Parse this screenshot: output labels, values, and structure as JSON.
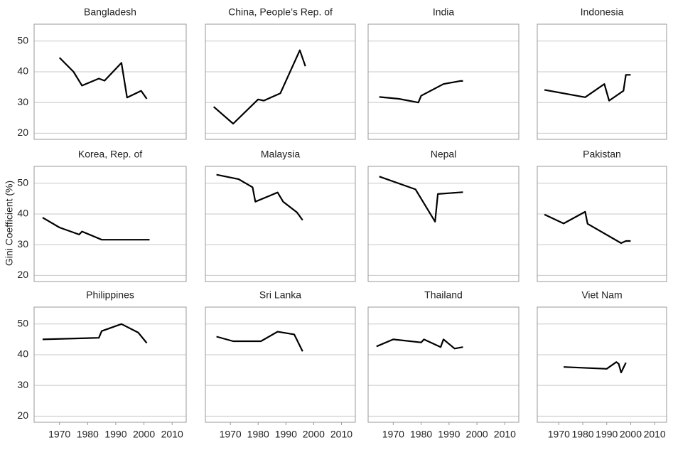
{
  "y_label": "Gini Coefficient (%)",
  "xlim": [
    1961,
    2015
  ],
  "xticks": [
    1970,
    1980,
    1990,
    2000,
    2010
  ],
  "ylim": [
    18,
    55.5
  ],
  "yticks": [
    20,
    30,
    40,
    50
  ],
  "grid": true,
  "chart_data": [
    {
      "type": "line",
      "title": "Bangladesh",
      "color": "#000000",
      "x": [
        1970,
        1975,
        1978,
        1984,
        1986,
        1992,
        1994,
        1999,
        2001
      ],
      "values": [
        44.6,
        40,
        35.5,
        37.8,
        37.1,
        42.9,
        31.6,
        33.8,
        31.2
      ]
    },
    {
      "type": "line",
      "title": "China, People’s Rep. of",
      "color": "#000000",
      "x": [
        1964,
        1971,
        1980,
        1982,
        1988,
        1995,
        1997
      ],
      "values": [
        28.6,
        23.1,
        31,
        30.6,
        33,
        47,
        41.8
      ]
    },
    {
      "type": "line",
      "title": "India",
      "color": "#000000",
      "x": [
        1965,
        1972,
        1979,
        1980,
        1988,
        1994,
        1995
      ],
      "values": [
        31.8,
        31.2,
        30,
        32.2,
        36,
        37,
        37
      ]
    },
    {
      "type": "line",
      "title": "Indonesia",
      "color": "#000000",
      "x": [
        1964,
        1981,
        1989,
        1991,
        1997,
        1998,
        2000
      ],
      "values": [
        34.1,
        31.7,
        36,
        30.6,
        33.8,
        39,
        39
      ]
    },
    {
      "type": "line",
      "title": "Korea, Rep. of",
      "color": "#000000",
      "x": [
        1964,
        1970,
        1977,
        1978,
        1985,
        2002
      ],
      "values": [
        38.8,
        35.6,
        33.3,
        34.3,
        31.6,
        31.6
      ]
    },
    {
      "type": "line",
      "title": "Malaysia",
      "color": "#000000",
      "x": [
        1965,
        1973,
        1978,
        1979,
        1987,
        1989,
        1994,
        1996
      ],
      "values": [
        52.8,
        51.3,
        48.7,
        44,
        47,
        44,
        40.5,
        38
      ]
    },
    {
      "type": "line",
      "title": "Nepal",
      "color": "#000000",
      "x": [
        1965,
        1978,
        1985,
        1986,
        1995
      ],
      "values": [
        52.2,
        48,
        37.5,
        46.5,
        47.1
      ]
    },
    {
      "type": "line",
      "title": "Pakistan",
      "color": "#000000",
      "x": [
        1964,
        1972,
        1981,
        1982,
        1996,
        1998,
        2000
      ],
      "values": [
        39.8,
        36.9,
        40.7,
        36.8,
        30.5,
        31.2,
        31.2
      ]
    },
    {
      "type": "line",
      "title": "Philippines",
      "color": "#000000",
      "x": [
        1964,
        1984,
        1985,
        1992,
        1998,
        2001
      ],
      "values": [
        45,
        45.5,
        47.7,
        50,
        47.2,
        43.8
      ]
    },
    {
      "type": "line",
      "title": "Sri Lanka",
      "color": "#000000",
      "x": [
        1965,
        1971,
        1981,
        1987,
        1993,
        1996
      ],
      "values": [
        45.9,
        44.4,
        44.4,
        47.5,
        46.6,
        41.1
      ]
    },
    {
      "type": "line",
      "title": "Thailand",
      "color": "#000000",
      "x": [
        1964,
        1970,
        1980,
        1981,
        1987,
        1988,
        1992,
        1995
      ],
      "values": [
        42.7,
        45,
        44,
        45,
        42.5,
        45,
        42,
        42.5
      ]
    },
    {
      "type": "line",
      "title": "Viet Nam",
      "color": "#000000",
      "x": [
        1972,
        1990,
        1994,
        1995,
        1996,
        1998
      ],
      "values": [
        36,
        35.4,
        37.6,
        37,
        34.2,
        37.4
      ]
    }
  ]
}
